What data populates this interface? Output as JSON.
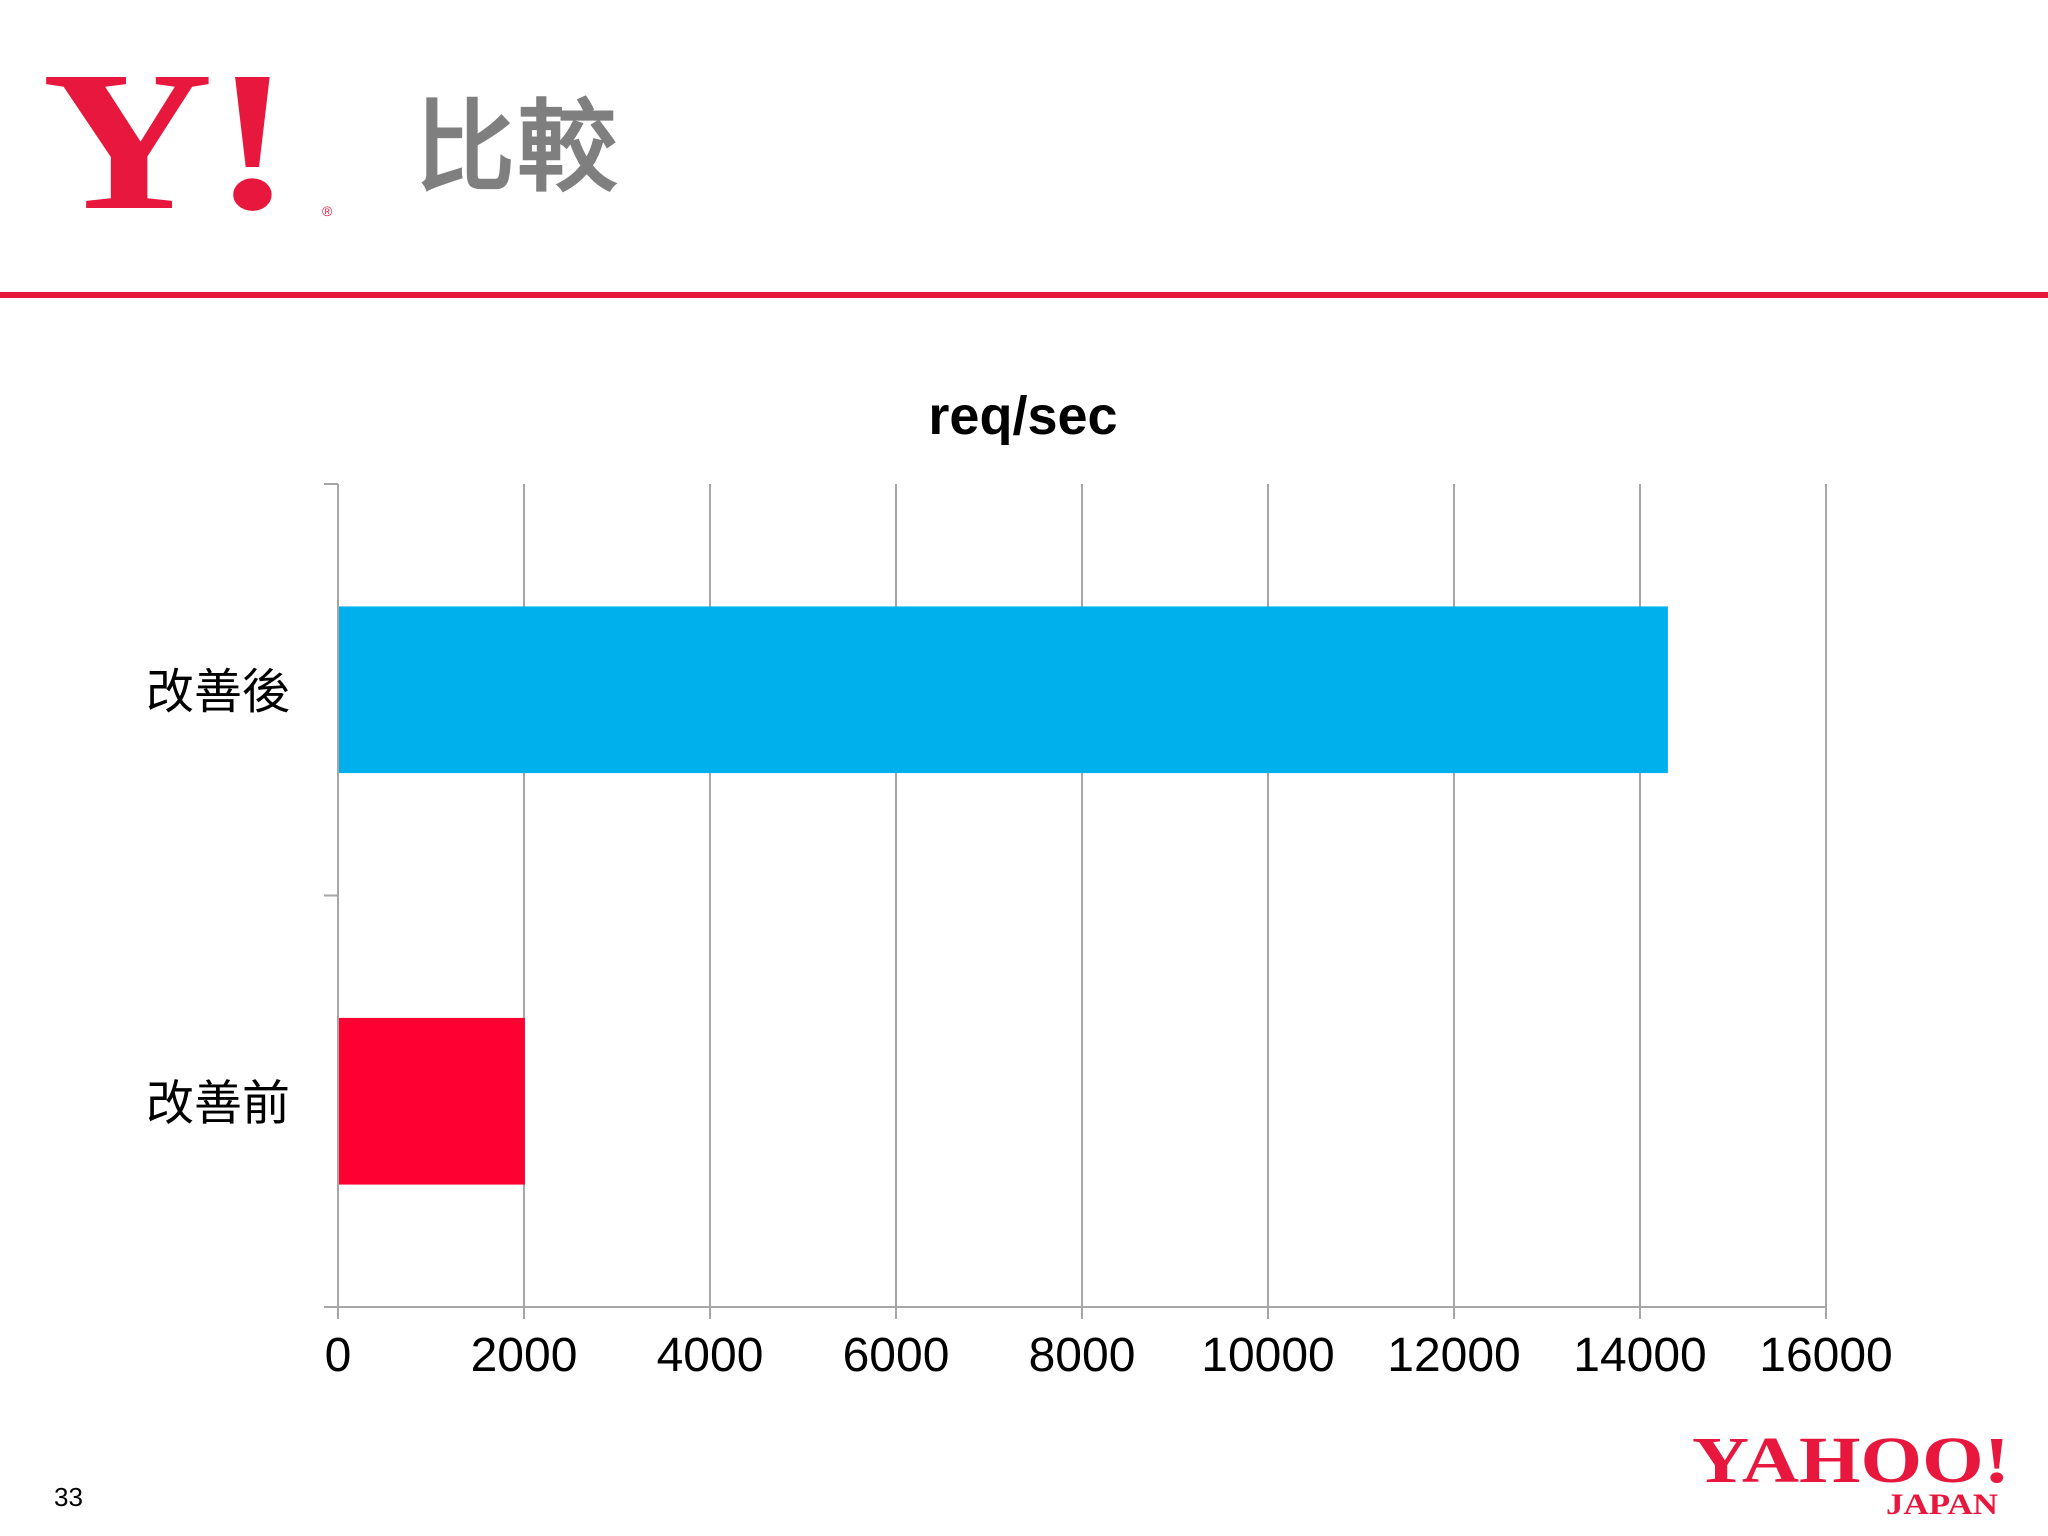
{
  "header": {
    "title": "比較",
    "logo_mark": "Y!"
  },
  "footer": {
    "page_number": "33",
    "logo_text": "YAHOO!",
    "logo_subtext": "JAPAN"
  },
  "colors": {
    "brand_red": "#e8173e",
    "title_gray": "#7f7f7f",
    "bar_after": "#00b0ec",
    "bar_before": "#ff0033",
    "grid": "#a6a6a6"
  },
  "chart_data": {
    "type": "bar",
    "orientation": "horizontal",
    "title": "req/sec",
    "categories": [
      "改善後",
      "改善前"
    ],
    "values": [
      14300,
      2010
    ],
    "xlim": [
      0,
      16000
    ],
    "xticks": [
      0,
      2000,
      4000,
      6000,
      8000,
      10000,
      12000,
      14000,
      16000
    ],
    "xlabel": "",
    "ylabel": "",
    "grid": true,
    "legend": "none"
  }
}
